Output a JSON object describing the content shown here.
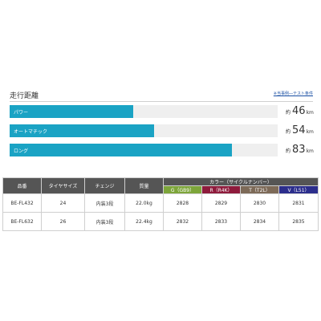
{
  "range": {
    "title": "走行距離",
    "note": "※当事例―テスト条件",
    "bars": [
      {
        "label": "パワー",
        "prefix": "約",
        "value": "46",
        "unit": "km",
        "fill_ratio": 0.46
      },
      {
        "label": "オートマチック",
        "prefix": "約",
        "value": "54",
        "unit": "km",
        "fill_ratio": 0.54
      },
      {
        "label": "ロング",
        "prefix": "約",
        "value": "83",
        "unit": "km",
        "fill_ratio": 0.83
      }
    ],
    "bar_color": "#1aa3c4"
  },
  "table": {
    "headers": {
      "model": "品番",
      "tire": "タイヤサイズ",
      "gear": "チェンジ",
      "weight": "質量",
      "color_group": "カラー（サイクルナンバー）"
    },
    "colors": [
      {
        "label": "G（GB9）",
        "hex": "#7da53a"
      },
      {
        "label": "R（R4K）",
        "hex": "#8e1b3c"
      },
      {
        "label": "T（T2L）",
        "hex": "#7d6a58"
      },
      {
        "label": "V（L51）",
        "hex": "#2c2e8c"
      }
    ],
    "rows": [
      {
        "model": "BE-FL432",
        "tire": "24",
        "gear": "内装3段",
        "weight": "22.0kg",
        "g": "2828",
        "r": "2829",
        "t": "2830",
        "v": "2831"
      },
      {
        "model": "BE-FL632",
        "tire": "26",
        "gear": "内装3段",
        "weight": "22.4kg",
        "g": "2832",
        "r": "2833",
        "t": "2834",
        "v": "2835"
      }
    ]
  }
}
